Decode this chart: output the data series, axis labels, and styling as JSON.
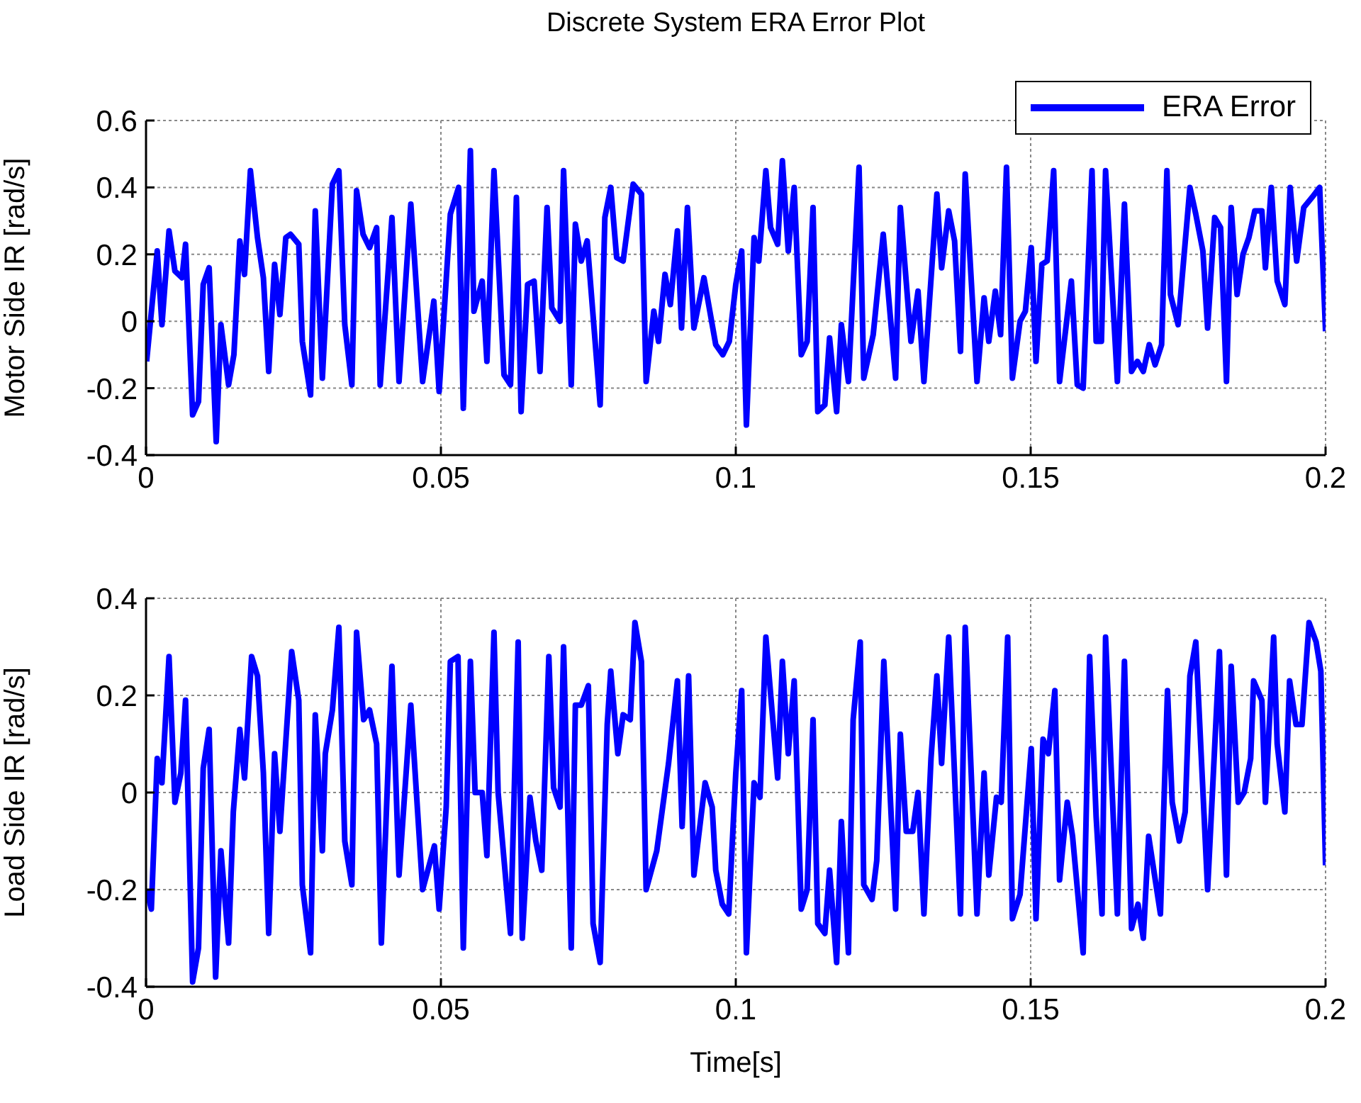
{
  "chart_data": [
    {
      "type": "line",
      "title": "Discrete System ERA Error Plot",
      "ylabel": "Motor Side IR [rad/s]",
      "xlim": [
        0,
        0.2
      ],
      "xticks": [
        0,
        0.05,
        0.1,
        0.15,
        0.2
      ],
      "ylim": [
        -0.4,
        0.6
      ],
      "yticks": [
        -0.4,
        -0.2,
        0,
        0.2,
        0.4,
        0.6
      ],
      "grid": true,
      "legend": "top right",
      "x": [
        0.0001,
        0.0019,
        0.0027,
        0.0039,
        0.0049,
        0.0061,
        0.0067,
        0.0079,
        0.0089,
        0.0097,
        0.0107,
        0.0119,
        0.0127,
        0.014,
        0.0149,
        0.0159,
        0.0167,
        0.0177,
        0.0189,
        0.0199,
        0.0208,
        0.0218,
        0.0227,
        0.0237,
        0.0245,
        0.0259,
        0.0265,
        0.0279,
        0.0287,
        0.0299,
        0.0316,
        0.0327,
        0.0337,
        0.0349,
        0.0357,
        0.0368,
        0.0379,
        0.0391,
        0.0397,
        0.0417,
        0.0429,
        0.0449,
        0.0469,
        0.0488,
        0.0497,
        0.0516,
        0.053,
        0.0538,
        0.055,
        0.0556,
        0.057,
        0.0578,
        0.059,
        0.0607,
        0.0618,
        0.0628,
        0.0636,
        0.0647,
        0.0658,
        0.0668,
        0.068,
        0.0688,
        0.0702,
        0.0708,
        0.0721,
        0.0728,
        0.0738,
        0.0748,
        0.077,
        0.0778,
        0.0788,
        0.0798,
        0.0809,
        0.0826,
        0.084,
        0.0848,
        0.0861,
        0.0869,
        0.088,
        0.0889,
        0.0901,
        0.0908,
        0.0918,
        0.0929,
        0.0946,
        0.0966,
        0.0978,
        0.0989,
        0.1,
        0.101,
        0.1018,
        0.1031,
        0.1039,
        0.1051,
        0.1059,
        0.1071,
        0.1079,
        0.1089,
        0.1099,
        0.1111,
        0.1121,
        0.1131,
        0.1139,
        0.1151,
        0.1159,
        0.1171,
        0.1179,
        0.1191,
        0.1209,
        0.1217,
        0.1233,
        0.125,
        0.1271,
        0.1279,
        0.1297,
        0.1309,
        0.1319,
        0.1341,
        0.1349,
        0.1361,
        0.1371,
        0.1381,
        0.1389,
        0.1409,
        0.1421,
        0.1429,
        0.144,
        0.1449,
        0.1459,
        0.1469,
        0.1482,
        0.1491,
        0.1501,
        0.1509,
        0.1519,
        0.1528,
        0.1539,
        0.1549,
        0.1569,
        0.1579,
        0.1589,
        0.1604,
        0.1611,
        0.162,
        0.1627,
        0.1647,
        0.1659,
        0.1671,
        0.1681,
        0.1691,
        0.1701,
        0.1711,
        0.1722,
        0.1731,
        0.1737,
        0.175,
        0.177,
        0.178,
        0.1792,
        0.18,
        0.1812,
        0.1822,
        0.1832,
        0.184,
        0.185,
        0.186,
        0.187,
        0.188,
        0.1892,
        0.1898,
        0.1908,
        0.1918,
        0.1931,
        0.194,
        0.1951,
        0.1963,
        0.1977,
        0.199,
        0.2
      ],
      "series": [
        {
          "name": "ERA Error",
          "color": "#0000ff",
          "values": [
            -0.12,
            0.21,
            -0.01,
            0.27,
            0.15,
            0.13,
            0.23,
            -0.28,
            -0.24,
            0.11,
            0.16,
            -0.36,
            -0.01,
            -0.19,
            -0.1,
            0.24,
            0.14,
            0.45,
            0.25,
            0.13,
            -0.15,
            0.17,
            0.02,
            0.25,
            0.26,
            0.23,
            -0.06,
            -0.22,
            0.33,
            -0.17,
            0.41,
            0.45,
            -0.01,
            -0.19,
            0.39,
            0.26,
            0.22,
            0.28,
            -0.19,
            0.31,
            -0.18,
            0.35,
            -0.18,
            0.06,
            -0.21,
            0.32,
            0.4,
            -0.26,
            0.51,
            0.03,
            0.12,
            -0.12,
            0.45,
            -0.16,
            -0.19,
            0.37,
            -0.27,
            0.11,
            0.12,
            -0.15,
            0.34,
            0.04,
            0,
            0.45,
            -0.19,
            0.29,
            0.18,
            0.24,
            -0.25,
            0.31,
            0.4,
            0.19,
            0.18,
            0.41,
            0.38,
            -0.18,
            0.03,
            -0.06,
            0.14,
            0.05,
            0.27,
            -0.02,
            0.34,
            -0.02,
            0.13,
            -0.07,
            -0.1,
            -0.06,
            0.11,
            0.21,
            -0.31,
            0.25,
            0.18,
            0.45,
            0.28,
            0.23,
            0.48,
            0.21,
            0.4,
            -0.1,
            -0.06,
            0.34,
            -0.27,
            -0.25,
            -0.05,
            -0.27,
            -0.01,
            -0.18,
            0.46,
            -0.17,
            -0.04,
            0.26,
            -0.17,
            0.34,
            -0.06,
            0.09,
            -0.18,
            0.38,
            0.16,
            0.33,
            0.24,
            -0.09,
            0.44,
            -0.18,
            0.07,
            -0.06,
            0.09,
            -0.04,
            0.46,
            -0.17,
            0,
            0.03,
            0.22,
            -0.12,
            0.17,
            0.18,
            0.45,
            -0.18,
            0.12,
            -0.19,
            -0.2,
            0.45,
            -0.06,
            -0.06,
            0.45,
            -0.18,
            0.35,
            -0.15,
            -0.12,
            -0.15,
            -0.07,
            -0.13,
            -0.07,
            0.45,
            0.08,
            -0.01,
            0.4,
            0.32,
            0.21,
            -0.02,
            0.31,
            0.28,
            -0.18,
            0.34,
            0.08,
            0.2,
            0.25,
            0.33,
            0.33,
            0.16,
            0.4,
            0.12,
            0.05,
            0.4,
            0.18,
            0.34,
            0.37,
            0.4,
            -0.03
          ]
        }
      ]
    },
    {
      "type": "line",
      "xlabel": "Time[s]",
      "ylabel": "Load Side IR [rad/s]",
      "xlim": [
        0,
        0.2
      ],
      "xticks": [
        0,
        0.05,
        0.1,
        0.15,
        0.2
      ],
      "ylim": [
        -0.4,
        0.4
      ],
      "yticks": [
        -0.4,
        -0.2,
        0,
        0.2,
        0.4
      ],
      "grid": true,
      "x": [
        0.0001,
        0.0009,
        0.0019,
        0.0027,
        0.0039,
        0.0049,
        0.0059,
        0.0067,
        0.0079,
        0.0089,
        0.0097,
        0.0107,
        0.0118,
        0.0127,
        0.014,
        0.0148,
        0.0159,
        0.0167,
        0.0179,
        0.0189,
        0.0199,
        0.0208,
        0.0218,
        0.0227,
        0.0247,
        0.0259,
        0.0265,
        0.0279,
        0.0287,
        0.0299,
        0.0304,
        0.0316,
        0.0327,
        0.0337,
        0.0349,
        0.0357,
        0.0369,
        0.0379,
        0.0391,
        0.0399,
        0.0417,
        0.0429,
        0.0449,
        0.046,
        0.0469,
        0.0489,
        0.0497,
        0.0509,
        0.0516,
        0.0529,
        0.0538,
        0.055,
        0.0558,
        0.057,
        0.0578,
        0.059,
        0.0597,
        0.0618,
        0.0631,
        0.0638,
        0.0651,
        0.0661,
        0.0671,
        0.0683,
        0.0691,
        0.0702,
        0.0708,
        0.0721,
        0.0728,
        0.0738,
        0.075,
        0.0758,
        0.077,
        0.0782,
        0.0788,
        0.08,
        0.0809,
        0.0821,
        0.0829,
        0.084,
        0.0848,
        0.0866,
        0.0886,
        0.0901,
        0.0909,
        0.092,
        0.0929,
        0.0948,
        0.096,
        0.0966,
        0.0977,
        0.0988,
        0.1,
        0.101,
        0.1018,
        0.1031,
        0.1041,
        0.1051,
        0.1071,
        0.1079,
        0.1089,
        0.1099,
        0.1111,
        0.1121,
        0.1131,
        0.1139,
        0.1151,
        0.1159,
        0.1171,
        0.1179,
        0.1191,
        0.1199,
        0.1211,
        0.1217,
        0.1231,
        0.1239,
        0.1251,
        0.1271,
        0.1279,
        0.1289,
        0.13,
        0.1309,
        0.1319,
        0.1331,
        0.1341,
        0.1349,
        0.1361,
        0.1381,
        0.1389,
        0.1409,
        0.1421,
        0.1429,
        0.1442,
        0.145,
        0.1461,
        0.1469,
        0.1482,
        0.1501,
        0.1509,
        0.1521,
        0.153,
        0.1541,
        0.1549,
        0.1562,
        0.1571,
        0.1589,
        0.16,
        0.1611,
        0.1621,
        0.1627,
        0.1647,
        0.1659,
        0.1671,
        0.1682,
        0.1691,
        0.17,
        0.172,
        0.1732,
        0.174,
        0.1752,
        0.1762,
        0.177,
        0.178,
        0.18,
        0.182,
        0.1832,
        0.184,
        0.1852,
        0.1862,
        0.1873,
        0.1878,
        0.1892,
        0.1898,
        0.1912,
        0.1918,
        0.1931,
        0.1939,
        0.195,
        0.196,
        0.1972,
        0.1984,
        0.1992,
        0.2
      ],
      "series": [
        {
          "color": "#0000ff",
          "values": [
            -0.2,
            -0.24,
            0.07,
            0.02,
            0.28,
            -0.02,
            0.04,
            0.19,
            -0.39,
            -0.32,
            0.05,
            0.13,
            -0.38,
            -0.12,
            -0.31,
            -0.04,
            0.13,
            0.03,
            0.28,
            0.24,
            0.04,
            -0.29,
            0.08,
            -0.08,
            0.29,
            0.19,
            -0.19,
            -0.33,
            0.16,
            -0.12,
            0.08,
            0.17,
            0.34,
            -0.1,
            -0.19,
            0.33,
            0.15,
            0.17,
            0.1,
            -0.31,
            0.26,
            -0.17,
            0.18,
            -0.03,
            -0.2,
            -0.11,
            -0.24,
            -0.03,
            0.27,
            0.28,
            -0.32,
            0.27,
            0,
            0,
            -0.13,
            0.33,
            0,
            -0.29,
            0.31,
            -0.3,
            -0.01,
            -0.1,
            -0.16,
            0.28,
            0.01,
            -0.03,
            0.3,
            -0.32,
            0.18,
            0.18,
            0.22,
            -0.27,
            -0.35,
            0.14,
            0.25,
            0.08,
            0.16,
            0.15,
            0.35,
            0.27,
            -0.2,
            -0.12,
            0.06,
            0.23,
            -0.07,
            0.24,
            -0.17,
            0.02,
            -0.03,
            -0.16,
            -0.23,
            -0.25,
            0.04,
            0.21,
            -0.33,
            0.02,
            -0.01,
            0.32,
            0.03,
            0.27,
            0.08,
            0.23,
            -0.24,
            -0.2,
            0.15,
            -0.27,
            -0.29,
            -0.16,
            -0.35,
            -0.06,
            -0.33,
            0.15,
            0.31,
            -0.19,
            -0.22,
            -0.14,
            0.27,
            -0.24,
            0.12,
            -0.08,
            -0.08,
            0,
            -0.25,
            0.07,
            0.24,
            0.06,
            0.32,
            -0.25,
            0.34,
            -0.25,
            0.04,
            -0.17,
            -0.01,
            -0.02,
            0.32,
            -0.26,
            -0.21,
            0.09,
            -0.26,
            0.11,
            0.08,
            0.21,
            -0.18,
            -0.02,
            -0.09,
            -0.33,
            0.28,
            -0.05,
            -0.25,
            0.32,
            -0.25,
            0.27,
            -0.28,
            -0.23,
            -0.3,
            -0.09,
            -0.25,
            0.21,
            -0.02,
            -0.1,
            -0.04,
            0.24,
            0.31,
            -0.2,
            0.29,
            -0.17,
            0.26,
            -0.02,
            0,
            0.07,
            0.23,
            0.19,
            -0.02,
            0.32,
            0.1,
            -0.04,
            0.23,
            0.14,
            0.14,
            0.35,
            0.31,
            0.25,
            -0.15
          ]
        }
      ]
    }
  ]
}
